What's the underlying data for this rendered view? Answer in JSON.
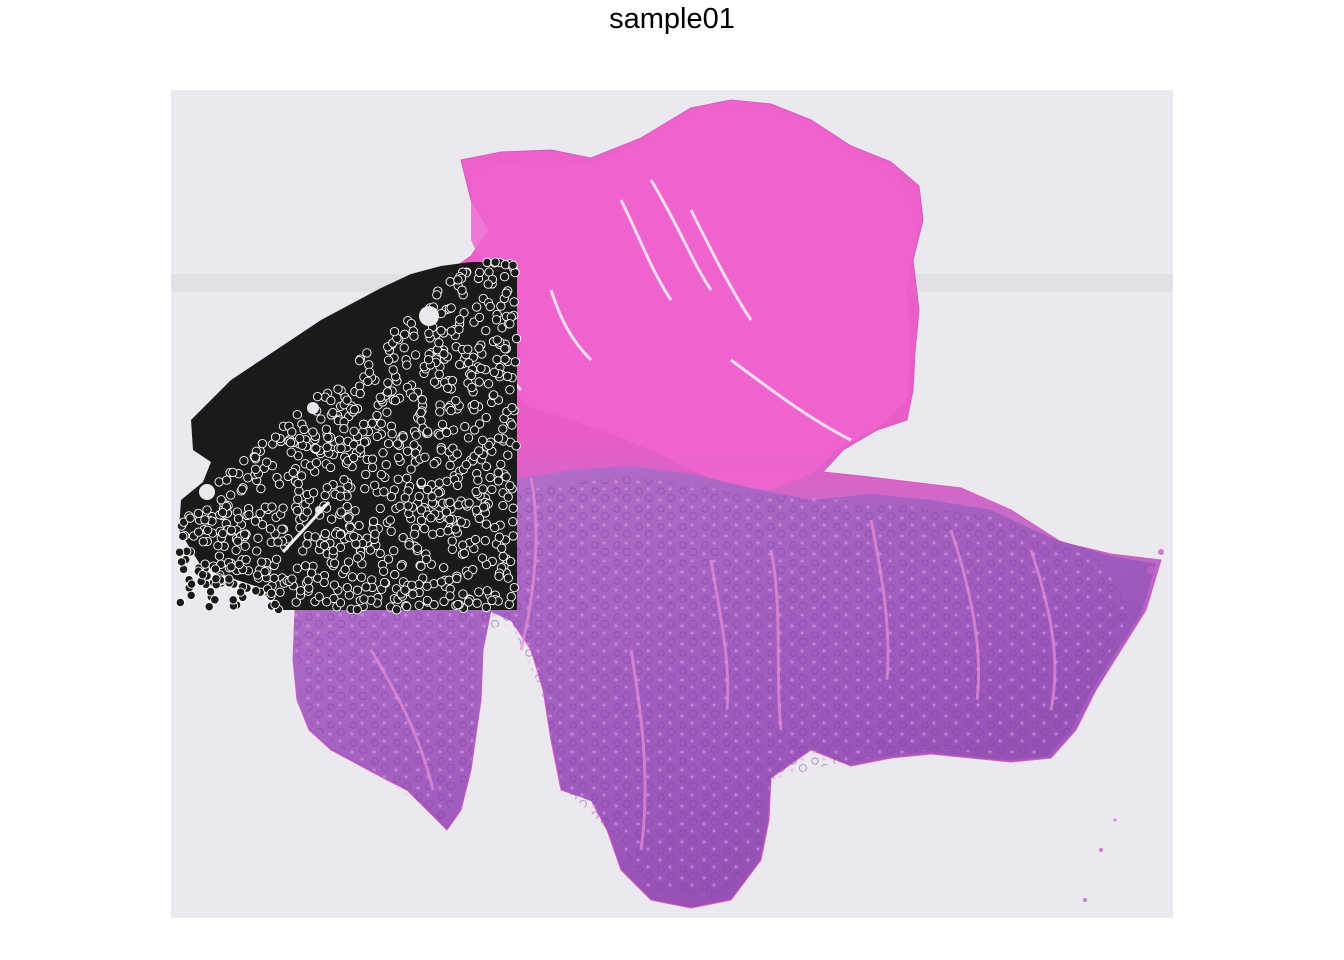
{
  "title": "sample01",
  "image": {
    "kind": "H&E stained tissue section with overlaid spot markers",
    "background_color": "#ebe9ef",
    "stain_colors": {
      "eosin": "#e85cc6",
      "hematoxylin": "#9a5bbf",
      "dense_nuclei": "#7d3f9e"
    },
    "spot_marker_color": "#1a1a1a",
    "spot_outline_color": "#ffffff"
  }
}
